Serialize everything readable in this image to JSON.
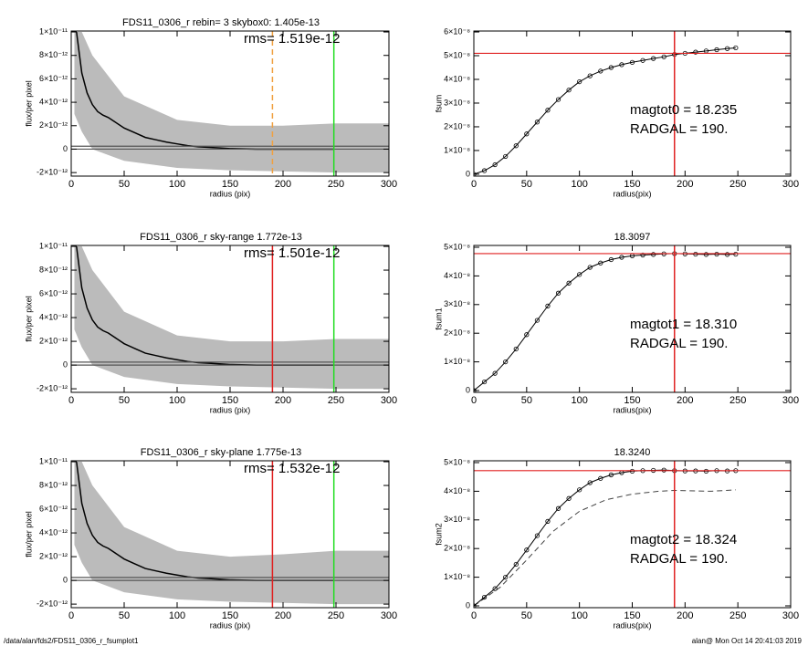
{
  "chart_data": [
    {
      "type": "line",
      "title": "FDS11_0306_r rebin= 3    skybox0:  1.405e-13",
      "annotations": [
        "rms= 1.519e-12"
      ],
      "x_label": "radius (pix)",
      "y_label": "flux/per pixel",
      "xlim": [
        0,
        300
      ],
      "xticks": [
        0,
        50,
        100,
        150,
        200,
        250,
        300
      ],
      "ylim": [
        -2.3e-12,
        1.008e-11
      ],
      "yticks": [
        {
          "value": -2e-12,
          "label": "-2×10⁻¹²"
        },
        0,
        {
          "value": 2e-12,
          "label": "2×10⁻¹²"
        },
        {
          "value": 4e-12,
          "label": "4×10⁻¹²"
        },
        {
          "value": 6e-12,
          "label": "6×10⁻¹²"
        },
        {
          "value": 8e-12,
          "label": "8×10⁻¹²"
        },
        {
          "value": 1e-11,
          "label": "1×10⁻¹¹"
        }
      ],
      "vlines": [
        {
          "x": 190,
          "color": "#f0a040",
          "dash": true
        },
        {
          "x": 248,
          "color": "#22dd22"
        }
      ],
      "hlines": [
        {
          "y": 0,
          "color": "#555555"
        },
        {
          "y": 2.5e-13,
          "color": "#555555"
        }
      ],
      "series": [
        {
          "style": "band",
          "color": "#bbbbbb",
          "x": [
            3,
            10,
            20,
            50,
            100,
            150,
            200,
            250,
            300
          ],
          "values": [
            1e-11,
            1e-11,
            8e-12,
            4.5e-12,
            2.5e-12,
            2e-12,
            2e-12,
            2.2e-12,
            2.2e-12
          ],
          "lower": [
            3e-12,
            1.5e-12,
            0,
            -1e-12,
            -1.6e-12,
            -1.8e-12,
            -1.9e-12,
            -2e-12,
            -2e-12
          ]
        },
        {
          "style": "line",
          "color": "#000000",
          "x": [
            5,
            10,
            15,
            20,
            25,
            30,
            35,
            40,
            50,
            60,
            70,
            80,
            90,
            100,
            110,
            120,
            130,
            140,
            150,
            175,
            200,
            225,
            248
          ],
          "values": [
            1e-11,
            6.5e-12,
            4.8e-12,
            3.8e-12,
            3.2e-12,
            2.9e-12,
            2.7e-12,
            2.4e-12,
            1.8e-12,
            1.4e-12,
            1e-12,
            8e-13,
            6e-13,
            4.5e-13,
            3e-13,
            2e-13,
            1.5e-13,
            1e-13,
            5e-14,
            0,
            0,
            0,
            0
          ]
        }
      ]
    },
    {
      "type": "line",
      "title": "",
      "annotations": [
        "magtot0 =  18.235",
        "RADGAL =    190."
      ],
      "x_label": "radius(pix)",
      "y_label": "fsum",
      "xlim": [
        0,
        300
      ],
      "xticks": [
        0,
        50,
        100,
        150,
        200,
        250,
        300
      ],
      "ylim": [
        -8e-10,
        6.04e-08
      ],
      "yticks": [
        0,
        {
          "value": 1e-08,
          "label": "1×10⁻⁸"
        },
        {
          "value": 2e-08,
          "label": "2×10⁻⁸"
        },
        {
          "value": 3e-08,
          "label": "3×10⁻⁸"
        },
        {
          "value": 4e-08,
          "label": "4×10⁻⁸"
        },
        {
          "value": 5e-08,
          "label": "5×10⁻⁸"
        },
        {
          "value": 6e-08,
          "label": "6×10⁻⁸"
        }
      ],
      "vlines": [
        {
          "x": 190,
          "color": "#e02020"
        }
      ],
      "hlines": [
        {
          "y": 5.1e-08,
          "color": "#e02020"
        }
      ],
      "series": [
        {
          "style": "circles",
          "color": "#000000",
          "x": [
            0,
            10,
            20,
            30,
            40,
            50,
            60,
            70,
            80,
            90,
            100,
            110,
            120,
            130,
            140,
            150,
            160,
            170,
            180,
            190,
            200,
            210,
            220,
            230,
            240,
            248
          ],
          "values": [
            0,
            1.5e-09,
            4e-09,
            7.5e-09,
            1.2e-08,
            1.7e-08,
            2.2e-08,
            2.7e-08,
            3.15e-08,
            3.55e-08,
            3.9e-08,
            4.15e-08,
            4.35e-08,
            4.5e-08,
            4.62e-08,
            4.72e-08,
            4.8e-08,
            4.88e-08,
            4.95e-08,
            5.05e-08,
            5.1e-08,
            5.15e-08,
            5.2e-08,
            5.25e-08,
            5.3e-08,
            5.33e-08
          ]
        }
      ]
    },
    {
      "type": "line",
      "title": "FDS11_0306_r sky-range  1.772e-13",
      "annotations": [
        "rms= 1.501e-12"
      ],
      "x_label": "radius (pix)",
      "y_label": "flux/per pixel",
      "xlim": [
        0,
        300
      ],
      "xticks": [
        0,
        50,
        100,
        150,
        200,
        250,
        300
      ],
      "ylim": [
        -2.3e-12,
        1.008e-11
      ],
      "yticks": [
        {
          "value": -2e-12,
          "label": "-2×10⁻¹²"
        },
        0,
        {
          "value": 2e-12,
          "label": "2×10⁻¹²"
        },
        {
          "value": 4e-12,
          "label": "4×10⁻¹²"
        },
        {
          "value": 6e-12,
          "label": "6×10⁻¹²"
        },
        {
          "value": 8e-12,
          "label": "8×10⁻¹²"
        },
        {
          "value": 1e-11,
          "label": "1×10⁻¹¹"
        }
      ],
      "vlines": [
        {
          "x": 190,
          "color": "#e02020"
        },
        {
          "x": 248,
          "color": "#22dd22"
        }
      ],
      "hlines": [
        {
          "y": 0,
          "color": "#555555"
        },
        {
          "y": 2.5e-13,
          "color": "#555555"
        }
      ],
      "series": [
        {
          "style": "band",
          "color": "#bbbbbb",
          "x": [
            3,
            10,
            20,
            50,
            100,
            150,
            200,
            250,
            300
          ],
          "values": [
            1e-11,
            1e-11,
            8e-12,
            4.5e-12,
            2.5e-12,
            2e-12,
            2e-12,
            2.2e-12,
            2.2e-12
          ],
          "lower": [
            3e-12,
            1.5e-12,
            0,
            -1e-12,
            -1.6e-12,
            -1.8e-12,
            -1.9e-12,
            -2e-12,
            -2e-12
          ]
        },
        {
          "style": "line",
          "color": "#000000",
          "x": [
            5,
            10,
            15,
            20,
            25,
            30,
            35,
            40,
            50,
            60,
            70,
            80,
            90,
            100,
            110,
            120,
            130,
            140,
            150,
            175,
            200,
            225,
            248
          ],
          "values": [
            1e-11,
            6.5e-12,
            4.8e-12,
            3.8e-12,
            3.2e-12,
            2.9e-12,
            2.7e-12,
            2.4e-12,
            1.8e-12,
            1.4e-12,
            1e-12,
            8e-13,
            6e-13,
            4.5e-13,
            3e-13,
            2e-13,
            1.5e-13,
            1e-13,
            5e-14,
            0,
            0,
            0,
            0
          ]
        }
      ]
    },
    {
      "type": "line",
      "title": "18.3097",
      "annotations": [
        "magtot1 =  18.310",
        "RADGAL =    190."
      ],
      "x_label": "radius(pix)",
      "y_label": "fsum1",
      "xlim": [
        0,
        300
      ],
      "xticks": [
        0,
        50,
        100,
        150,
        200,
        250,
        300
      ],
      "ylim": [
        -6.4e-10,
        5.064e-08
      ],
      "yticks": [
        0,
        {
          "value": 1e-08,
          "label": "1×10⁻⁸"
        },
        {
          "value": 2e-08,
          "label": "2×10⁻⁸"
        },
        {
          "value": 3e-08,
          "label": "3×10⁻⁸"
        },
        {
          "value": 4e-08,
          "label": "4×10⁻⁸"
        },
        {
          "value": 5e-08,
          "label": "5×10⁻⁸"
        }
      ],
      "vlines": [
        {
          "x": 190,
          "color": "#e02020"
        }
      ],
      "hlines": [
        {
          "y": 4.78e-08,
          "color": "#e02020"
        }
      ],
      "series": [
        {
          "style": "circles",
          "color": "#000000",
          "x": [
            0,
            10,
            20,
            30,
            40,
            50,
            60,
            70,
            80,
            90,
            100,
            110,
            120,
            130,
            140,
            150,
            160,
            170,
            180,
            190,
            200,
            210,
            220,
            230,
            240,
            248
          ],
          "values": [
            0,
            3e-09,
            6e-09,
            1e-08,
            1.45e-08,
            1.95e-08,
            2.45e-08,
            2.95e-08,
            3.4e-08,
            3.75e-08,
            4.05e-08,
            4.3e-08,
            4.45e-08,
            4.57e-08,
            4.65e-08,
            4.7e-08,
            4.73e-08,
            4.75e-08,
            4.77e-08,
            4.78e-08,
            4.77e-08,
            4.76e-08,
            4.75e-08,
            4.76e-08,
            4.75e-08,
            4.76e-08
          ]
        }
      ]
    },
    {
      "type": "line",
      "title": "FDS11_0306_r sky-plane  1.775e-13",
      "annotations": [
        "rms= 1.532e-12"
      ],
      "x_label": "radius (pix)",
      "y_label": "flux/per pixel",
      "xlim": [
        0,
        300
      ],
      "xticks": [
        0,
        50,
        100,
        150,
        200,
        250,
        300
      ],
      "ylim": [
        -2.3e-12,
        1.008e-11
      ],
      "yticks": [
        {
          "value": -2e-12,
          "label": "-2×10⁻¹²"
        },
        0,
        {
          "value": 2e-12,
          "label": "2×10⁻¹²"
        },
        {
          "value": 4e-12,
          "label": "4×10⁻¹²"
        },
        {
          "value": 6e-12,
          "label": "6×10⁻¹²"
        },
        {
          "value": 8e-12,
          "label": "8×10⁻¹²"
        },
        {
          "value": 1e-11,
          "label": "1×10⁻¹¹"
        }
      ],
      "vlines": [
        {
          "x": 190,
          "color": "#e02020"
        },
        {
          "x": 248,
          "color": "#22dd22"
        }
      ],
      "hlines": [
        {
          "y": 0,
          "color": "#555555"
        },
        {
          "y": 2.5e-13,
          "color": "#555555"
        }
      ],
      "series": [
        {
          "style": "band",
          "color": "#bbbbbb",
          "x": [
            3,
            10,
            20,
            50,
            100,
            150,
            200,
            250,
            300
          ],
          "values": [
            1e-11,
            1e-11,
            8e-12,
            4.5e-12,
            2.5e-12,
            2e-12,
            2.2e-12,
            2.5e-12,
            2.5e-12
          ],
          "lower": [
            3e-12,
            1.5e-12,
            0,
            -1e-12,
            -1.6e-12,
            -1.8e-12,
            -1.9e-12,
            -2e-12,
            -2e-12
          ]
        },
        {
          "style": "line",
          "color": "#000000",
          "x": [
            5,
            10,
            15,
            20,
            25,
            30,
            35,
            40,
            50,
            60,
            70,
            80,
            90,
            100,
            110,
            120,
            130,
            140,
            150,
            175,
            200,
            225,
            248
          ],
          "values": [
            1e-11,
            6.5e-12,
            4.8e-12,
            3.8e-12,
            3.2e-12,
            2.9e-12,
            2.7e-12,
            2.4e-12,
            1.8e-12,
            1.4e-12,
            1e-12,
            8e-13,
            6e-13,
            4.5e-13,
            3e-13,
            2e-13,
            1.5e-13,
            1e-13,
            5e-14,
            0,
            0,
            0,
            0
          ]
        }
      ]
    },
    {
      "type": "line",
      "title": "18.3240",
      "annotations": [
        "magtot2 =  18.324",
        "RADGAL =    190."
      ],
      "x_label": "radius(pix)",
      "y_label": "fsum2",
      "xlim": [
        0,
        300
      ],
      "xticks": [
        0,
        50,
        100,
        150,
        200,
        250,
        300
      ],
      "ylim": [
        -6.4e-10,
        5.064e-08
      ],
      "yticks": [
        0,
        {
          "value": 1e-08,
          "label": "1×10⁻⁸"
        },
        {
          "value": 2e-08,
          "label": "2×10⁻⁸"
        },
        {
          "value": 3e-08,
          "label": "3×10⁻⁸"
        },
        {
          "value": 4e-08,
          "label": "4×10⁻⁸"
        },
        {
          "value": 5e-08,
          "label": "5×10⁻⁸"
        }
      ],
      "vlines": [
        {
          "x": 190,
          "color": "#e02020"
        }
      ],
      "hlines": [
        {
          "y": 4.72e-08,
          "color": "#e02020"
        }
      ],
      "series": [
        {
          "style": "dashed",
          "color": "#444444",
          "x": [
            0,
            25,
            50,
            75,
            100,
            125,
            150,
            175,
            190,
            200,
            225,
            248
          ],
          "values": [
            0,
            6.5e-09,
            1.6e-08,
            2.6e-08,
            3.3e-08,
            3.7e-08,
            3.9e-08,
            4e-08,
            4.03e-08,
            4.02e-08,
            4e-08,
            4.05e-08
          ]
        },
        {
          "style": "circles",
          "color": "#000000",
          "x": [
            0,
            10,
            20,
            30,
            40,
            50,
            60,
            70,
            80,
            90,
            100,
            110,
            120,
            130,
            140,
            150,
            160,
            170,
            180,
            190,
            200,
            210,
            220,
            230,
            240,
            248
          ],
          "values": [
            0,
            3e-09,
            6e-09,
            1e-08,
            1.45e-08,
            1.95e-08,
            2.45e-08,
            2.95e-08,
            3.4e-08,
            3.75e-08,
            4.05e-08,
            4.3e-08,
            4.45e-08,
            4.57e-08,
            4.65e-08,
            4.7e-08,
            4.72e-08,
            4.73e-08,
            4.74e-08,
            4.72e-08,
            4.71e-08,
            4.71e-08,
            4.7e-08,
            4.72e-08,
            4.71e-08,
            4.72e-08
          ]
        }
      ]
    }
  ],
  "footer": {
    "left": "/data/alan/fds2/FDS11_0306_r_fsumplot1",
    "right": "alan@  Mon Oct 14 20:41:03 2019"
  }
}
